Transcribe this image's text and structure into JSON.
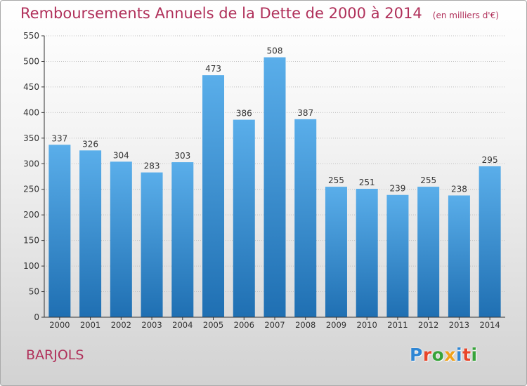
{
  "title": "Remboursements Annuels de la Dette de 2000 à 2014",
  "title_unit": "(en milliers d'€)",
  "place": "BARJOLS",
  "logo": {
    "text": "Proxiti",
    "colors": [
      "#2f86d4",
      "#e8452a",
      "#37a33a",
      "#f0a21b",
      "#2f86d4",
      "#e8452a",
      "#37a33a"
    ]
  },
  "colors": {
    "title": "#b0305a",
    "bar_top": "#5aaeea",
    "bar_bottom": "#1f6fb2",
    "grid": "#bfbfbf",
    "axis": "#333333"
  },
  "chart_data": {
    "type": "bar",
    "title": "Remboursements Annuels de la Dette de 2000 à 2014",
    "xlabel": "",
    "ylabel": "",
    "categories": [
      "2000",
      "2001",
      "2002",
      "2003",
      "2004",
      "2005",
      "2006",
      "2007",
      "2008",
      "2009",
      "2010",
      "2011",
      "2012",
      "2013",
      "2014"
    ],
    "values": [
      337,
      326,
      304,
      283,
      303,
      473,
      386,
      508,
      387,
      255,
      251,
      239,
      255,
      238,
      295
    ],
    "ylim": [
      0,
      550
    ],
    "yticks": [
      0,
      50,
      100,
      150,
      200,
      250,
      300,
      350,
      400,
      450,
      500,
      550
    ],
    "grid": true,
    "data_labels": true
  }
}
